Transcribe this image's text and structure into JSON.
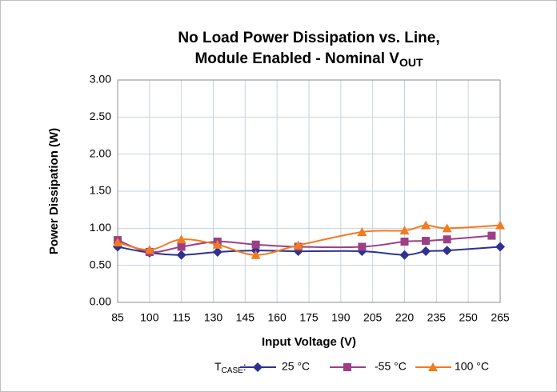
{
  "chart_data": {
    "type": "line",
    "title": [
      "No Load Power Dissipation vs. Line,",
      "Module Enabled - Nominal V"
    ],
    "title_subscript": "OUT",
    "x_label": "Input Voltage (V)",
    "y_label": "Power Dissipation (W)",
    "xlim": [
      85,
      265
    ],
    "xticks": [
      85,
      100,
      115,
      130,
      145,
      160,
      175,
      190,
      205,
      220,
      235,
      250,
      265
    ],
    "ylim": [
      0,
      3
    ],
    "yticks": [
      {
        "value": 0,
        "label": "0.00"
      },
      {
        "value": 0.5,
        "label": "0.50"
      },
      {
        "value": 1,
        "label": "1.00"
      },
      {
        "value": 1.5,
        "label": "1.50"
      },
      {
        "value": 2,
        "label": "2.00"
      },
      {
        "value": 2.5,
        "label": "2.50"
      },
      {
        "value": 3,
        "label": "3.00"
      }
    ],
    "grid": true,
    "legend_title": {
      "text": "T",
      "subscript": "CASE",
      "suffix": ":"
    },
    "legend_position": "bottom",
    "series": [
      {
        "name": "25 °C",
        "color": "#2e3192",
        "marker": "diamond",
        "x": [
          85,
          100,
          115,
          132,
          150,
          170,
          200,
          220,
          230,
          240,
          265
        ],
        "values": [
          0.75,
          0.67,
          0.64,
          0.68,
          0.7,
          0.69,
          0.69,
          0.64,
          0.69,
          0.7,
          0.75
        ]
      },
      {
        "name": "-55 °C",
        "color": "#9b3f86",
        "marker": "square",
        "x": [
          85,
          100,
          115,
          132,
          150,
          170,
          200,
          220,
          230,
          240,
          261
        ],
        "values": [
          0.84,
          0.68,
          0.75,
          0.82,
          0.78,
          0.75,
          0.75,
          0.82,
          0.83,
          0.85,
          0.9
        ]
      },
      {
        "name": "100 °C",
        "color": "#f47a20",
        "marker": "triangle",
        "x": [
          85,
          100,
          115,
          132,
          150,
          170,
          200,
          220,
          230,
          240,
          265
        ],
        "values": [
          0.81,
          0.71,
          0.85,
          0.78,
          0.64,
          0.77,
          0.95,
          0.97,
          1.04,
          1.0,
          1.04
        ]
      }
    ]
  }
}
